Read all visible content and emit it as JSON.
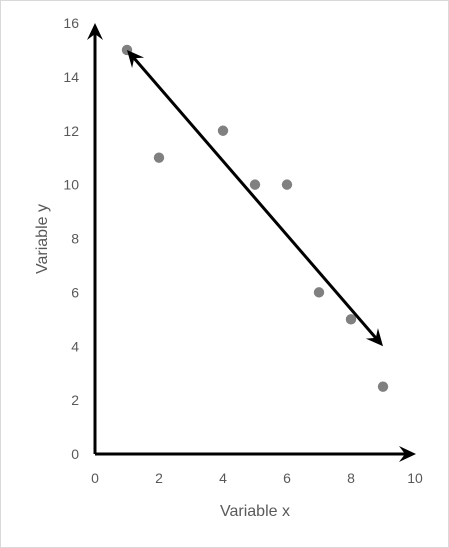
{
  "chart_data": {
    "type": "scatter",
    "title": "",
    "xlabel": "Variable x",
    "ylabel": "Variable y",
    "xlim": [
      0,
      10
    ],
    "ylim": [
      0,
      16
    ],
    "x_ticks": [
      "0",
      "2",
      "4",
      "6",
      "8",
      "10"
    ],
    "y_ticks": [
      "0",
      "2",
      "4",
      "6",
      "8",
      "10",
      "12",
      "14",
      "16"
    ],
    "grid": false,
    "series": [
      {
        "x": [
          1,
          2,
          4,
          5,
          6,
          7,
          8,
          9
        ],
        "y": [
          15,
          11,
          12,
          10,
          10,
          6,
          5,
          2.5
        ],
        "color": "#808080"
      }
    ],
    "annotations": [
      {
        "type": "double-arrow",
        "from": [
          1,
          15
        ],
        "to": [
          9,
          4
        ],
        "color": "#000000"
      }
    ],
    "axis_color": "#000000",
    "text_color": "#595959"
  }
}
